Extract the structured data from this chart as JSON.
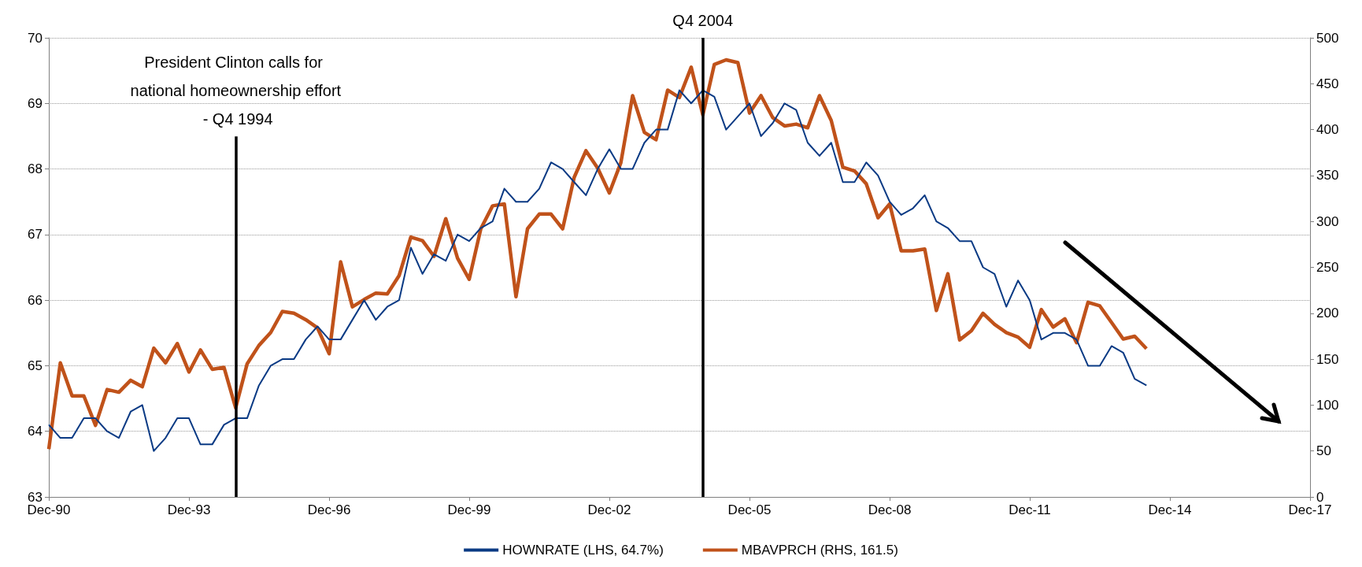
{
  "chart_data": {
    "type": "line",
    "x": [
      "1990-12",
      "1991-03",
      "1991-06",
      "1991-09",
      "1991-12",
      "1992-03",
      "1992-06",
      "1992-09",
      "1992-12",
      "1993-03",
      "1993-06",
      "1993-09",
      "1993-12",
      "1994-03",
      "1994-06",
      "1994-09",
      "1994-12",
      "1995-03",
      "1995-06",
      "1995-09",
      "1995-12",
      "1996-03",
      "1996-06",
      "1996-09",
      "1996-12",
      "1997-03",
      "1997-06",
      "1997-09",
      "1997-12",
      "1998-03",
      "1998-06",
      "1998-09",
      "1998-12",
      "1999-03",
      "1999-06",
      "1999-09",
      "1999-12",
      "2000-03",
      "2000-06",
      "2000-09",
      "2000-12",
      "2001-03",
      "2001-06",
      "2001-09",
      "2001-12",
      "2002-03",
      "2002-06",
      "2002-09",
      "2002-12",
      "2003-03",
      "2003-06",
      "2003-09",
      "2003-12",
      "2004-03",
      "2004-06",
      "2004-09",
      "2004-12",
      "2005-03",
      "2005-06",
      "2005-09",
      "2005-12",
      "2006-03",
      "2006-06",
      "2006-09",
      "2006-12",
      "2007-03",
      "2007-06",
      "2007-09",
      "2007-12",
      "2008-03",
      "2008-06",
      "2008-09",
      "2008-12",
      "2009-03",
      "2009-06",
      "2009-09",
      "2009-12",
      "2010-03",
      "2010-06",
      "2010-09",
      "2010-12",
      "2011-03",
      "2011-06",
      "2011-09",
      "2011-12",
      "2012-03",
      "2012-06",
      "2012-09",
      "2012-12",
      "2013-03",
      "2013-06",
      "2013-09",
      "2013-12",
      "2014-03",
      "2014-06"
    ],
    "series": [
      {
        "name": "HOWNRATE (LHS, 64.7%)",
        "color": "#0a3a84",
        "values": [
          64.1,
          63.9,
          63.9,
          64.2,
          64.2,
          64.0,
          63.9,
          64.3,
          64.4,
          63.7,
          63.9,
          64.2,
          64.2,
          63.8,
          63.8,
          64.1,
          64.2,
          64.2,
          64.7,
          65.0,
          65.1,
          65.1,
          65.4,
          65.6,
          65.4,
          65.4,
          65.7,
          66.0,
          65.7,
          65.9,
          66.0,
          66.8,
          66.4,
          66.7,
          66.6,
          67.0,
          66.9,
          67.1,
          67.2,
          67.7,
          67.5,
          67.5,
          67.7,
          68.1,
          68.0,
          67.8,
          67.6,
          68.0,
          68.3,
          68.0,
          68.0,
          68.4,
          68.6,
          68.6,
          69.2,
          69.0,
          69.2,
          69.1,
          68.6,
          68.8,
          69.0,
          68.5,
          68.7,
          69.0,
          68.9,
          68.4,
          68.2,
          68.4,
          67.8,
          67.8,
          68.1,
          67.9,
          67.5,
          67.3,
          67.4,
          67.6,
          67.2,
          67.1,
          66.9,
          66.9,
          66.5,
          66.4,
          65.9,
          66.3,
          66.0,
          65.4,
          65.5,
          65.5,
          65.4,
          65.0,
          65.0,
          65.3,
          65.2,
          64.8,
          64.7
        ]
      },
      {
        "name": "MBAVPRCH (RHS, 161.5)",
        "color": "#c0521a",
        "axis": "y2",
        "values": [
          52,
          146,
          110,
          110,
          78,
          117,
          114,
          127,
          120,
          162,
          146,
          167,
          136,
          160,
          139,
          141,
          97,
          145,
          165,
          179,
          202,
          200,
          193,
          184,
          156,
          256,
          207,
          215,
          222,
          221,
          241,
          283,
          279,
          262,
          303,
          260,
          237,
          292,
          317,
          319,
          218,
          292,
          308,
          308,
          292,
          348,
          377,
          358,
          331,
          364,
          437,
          397,
          389,
          443,
          435,
          468,
          416,
          471,
          476,
          473,
          418,
          437,
          413,
          404,
          406,
          402,
          437,
          410,
          359,
          355,
          341,
          304,
          319,
          268,
          268,
          270,
          203,
          243,
          171,
          181,
          200,
          188,
          179,
          174,
          163,
          204,
          185,
          194,
          168,
          212,
          208,
          190,
          172,
          175,
          161.5
        ]
      }
    ],
    "xlim": [
      "1990-12",
      "2017-12"
    ],
    "xticks": [
      {
        "value": "1990-12",
        "label": "Dec-90"
      },
      {
        "value": "1993-12",
        "label": "Dec-93"
      },
      {
        "value": "1996-12",
        "label": "Dec-96"
      },
      {
        "value": "1999-12",
        "label": "Dec-99"
      },
      {
        "value": "2002-12",
        "label": "Dec-02"
      },
      {
        "value": "2005-12",
        "label": "Dec-05"
      },
      {
        "value": "2008-12",
        "label": "Dec-08"
      },
      {
        "value": "2011-12",
        "label": "Dec-11"
      },
      {
        "value": "2014-12",
        "label": "Dec-14"
      },
      {
        "value": "2017-12",
        "label": "Dec-17"
      }
    ],
    "ylim": [
      63,
      70
    ],
    "yticks": [
      63,
      64,
      65,
      66,
      67,
      68,
      69,
      70
    ],
    "y2lim": [
      0,
      500
    ],
    "y2ticks": [
      0,
      50,
      100,
      150,
      200,
      250,
      300,
      350,
      400,
      450,
      500
    ],
    "ref_lines": [
      {
        "axis": "x",
        "value": "1994-12",
        "label": "President Clinton calls for national homeownership effort - Q4 1994",
        "color": "#000000"
      },
      {
        "axis": "x",
        "value": "2004-12",
        "label": "Q4 2004",
        "color": "#000000"
      }
    ],
    "grid": "y",
    "legend": "bottom",
    "marker": "none",
    "line_style": "solid"
  }
}
